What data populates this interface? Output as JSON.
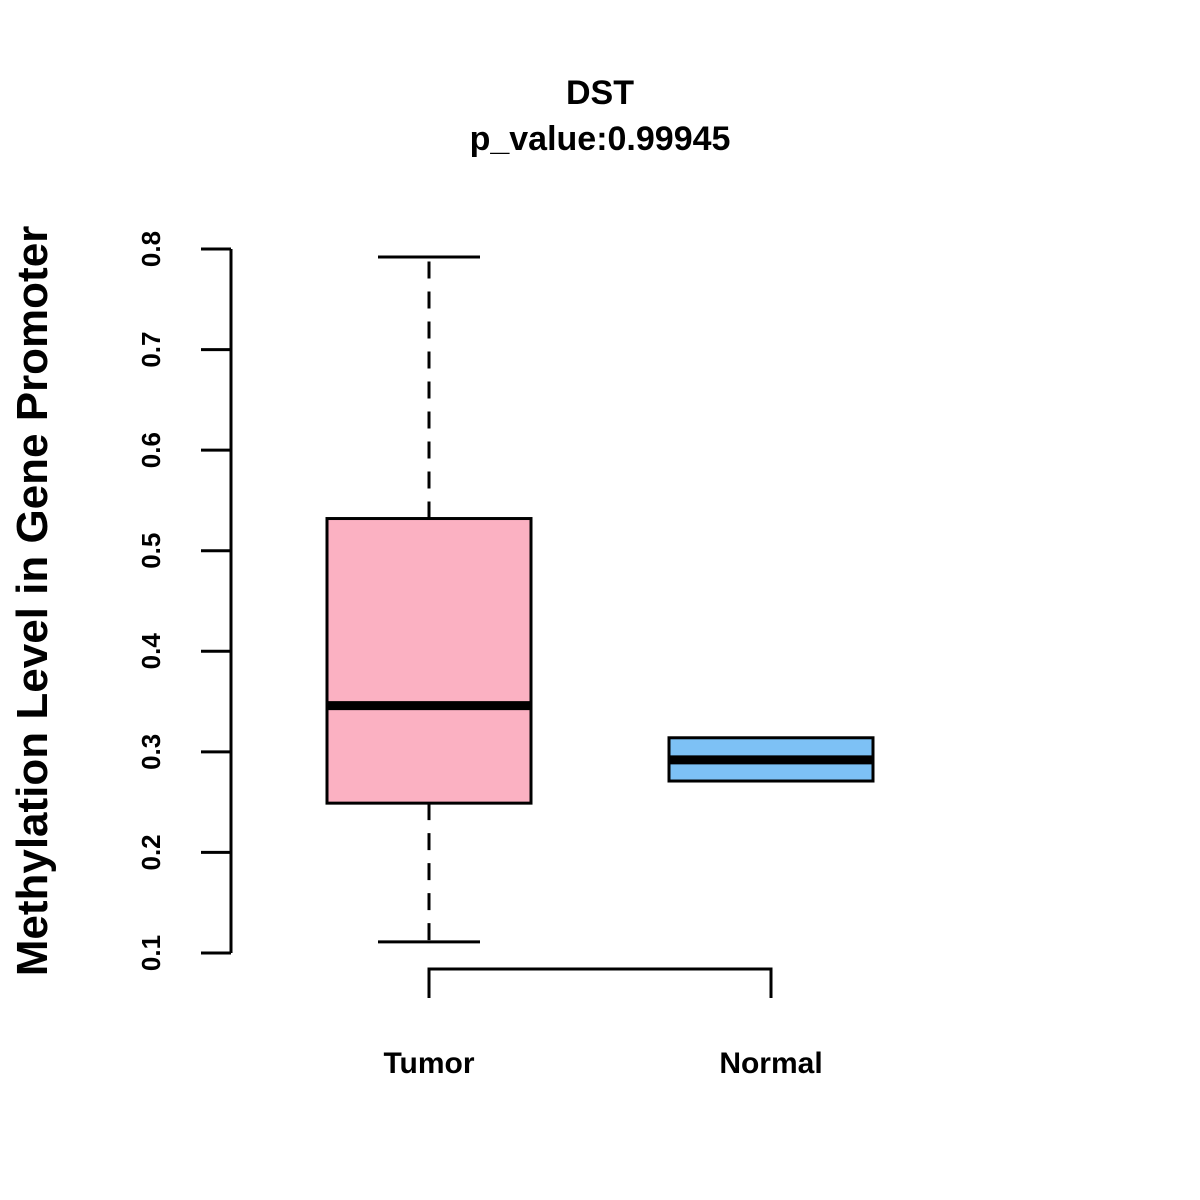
{
  "chart_data": {
    "type": "boxplot",
    "title": "DST",
    "subtitle": "p_value:0.99945",
    "xlabel": "",
    "ylabel": "Methylation Level in Gene Promoter",
    "ylim": [
      0.1,
      0.8
    ],
    "yticks": [
      0.1,
      0.2,
      0.3,
      0.4,
      0.5,
      0.6,
      0.7,
      0.8
    ],
    "ytick_labels": [
      "0.1",
      "0.2",
      "0.3",
      "0.4",
      "0.5",
      "0.6",
      "0.7",
      "0.8"
    ],
    "grid": false,
    "significance_bracket": true,
    "series": [
      {
        "name": "Tumor",
        "color": "#FBB1C2",
        "whisker_low": 0.111,
        "q1": 0.249,
        "median": 0.346,
        "q3": 0.532,
        "whisker_high": 0.792
      },
      {
        "name": "Normal",
        "color": "#7DC1F5",
        "whisker_low": 0.271,
        "q1": 0.271,
        "median": 0.292,
        "q3": 0.314,
        "whisker_high": 0.314
      }
    ]
  }
}
